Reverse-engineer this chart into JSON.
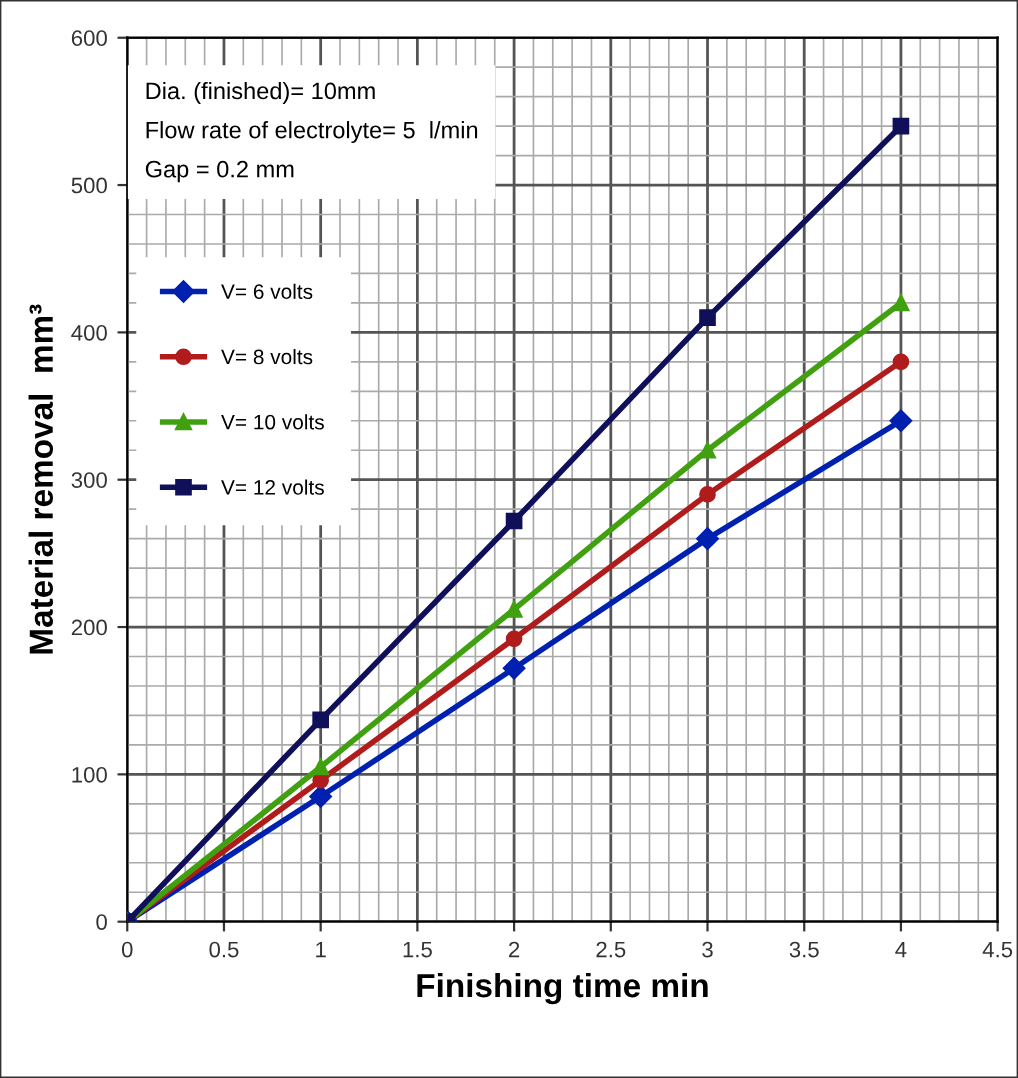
{
  "chart_data": {
    "type": "line",
    "xlabel": "Finishing time min",
    "ylabel": "Material removal  mm³",
    "x": [
      0,
      1,
      2,
      3,
      4
    ],
    "series": [
      {
        "name": "V= 6 volts",
        "color": "#0020b0",
        "marker": "diamond",
        "values": [
          0,
          85,
          172,
          260,
          340
        ]
      },
      {
        "name": "V= 8 volts",
        "color": "#b01c1c",
        "marker": "circle",
        "values": [
          0,
          96,
          192,
          290,
          380
        ]
      },
      {
        "name": "V= 10 volts",
        "color": "#40a010",
        "marker": "triangle",
        "values": [
          0,
          105,
          212,
          320,
          420
        ]
      },
      {
        "name": "V= 12 volts",
        "color": "#10105a",
        "marker": "square",
        "values": [
          0,
          137,
          272,
          410,
          540
        ]
      }
    ],
    "xlim": [
      0,
      4.5
    ],
    "xticks": [
      0,
      0.5,
      1,
      1.5,
      2,
      2.5,
      3,
      3.5,
      4,
      4.5
    ],
    "ylim": [
      0,
      600
    ],
    "yticks": [
      0,
      100,
      200,
      300,
      400,
      500,
      600
    ],
    "grid": true,
    "legend": "left",
    "line_style": "solid",
    "annotations": [
      "Dia. (finished)= 10mm",
      "Flow rate of electrolyte= 5  l/min",
      "Gap = 0.2 mm"
    ]
  }
}
